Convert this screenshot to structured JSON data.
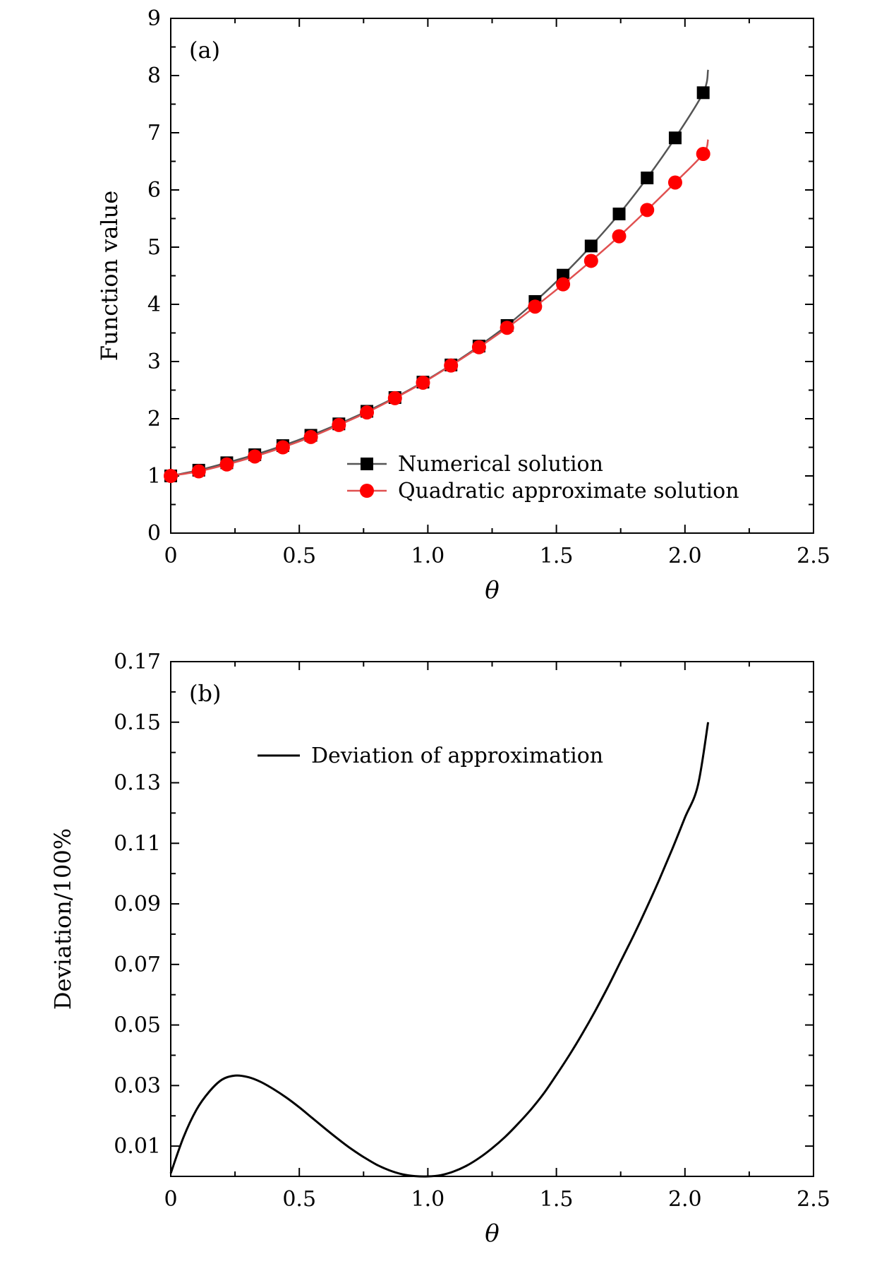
{
  "chart_data": [
    {
      "type": "line",
      "panel_label": "(a)",
      "xlabel": "θ",
      "ylabel": "Function value",
      "xlim": [
        0,
        2.5
      ],
      "ylim": [
        0,
        9
      ],
      "x_ticks": [
        0,
        0.5,
        1.0,
        1.5,
        2.0,
        2.5
      ],
      "x_tick_labels": [
        "0",
        "0.5",
        "1.0",
        "1.5",
        "2.0",
        "2.5"
      ],
      "y_ticks": [
        0,
        1,
        2,
        3,
        4,
        5,
        6,
        7,
        8,
        9
      ],
      "y_tick_labels": [
        "0",
        "1",
        "2",
        "3",
        "4",
        "5",
        "6",
        "7",
        "8",
        "9"
      ],
      "legend_position": "bottom-right",
      "series": [
        {
          "name": "Numerical solution",
          "color": "#555555",
          "marker": "square",
          "marker_color": "#000000",
          "line_end": [
            2.09,
            8.1
          ],
          "x": [
            0,
            0.109,
            0.218,
            0.327,
            0.436,
            0.545,
            0.654,
            0.763,
            0.872,
            0.981,
            1.09,
            1.199,
            1.308,
            1.417,
            1.526,
            1.635,
            1.744,
            1.853,
            1.962,
            2.071
          ],
          "values": [
            1.0,
            1.1,
            1.23,
            1.37,
            1.53,
            1.71,
            1.91,
            2.13,
            2.37,
            2.64,
            2.94,
            3.27,
            3.63,
            4.05,
            4.51,
            5.02,
            5.58,
            6.21,
            6.91,
            7.7
          ]
        },
        {
          "name": "Quadratic approximate solution",
          "color": "#e05050",
          "marker": "circle",
          "marker_color": "#ff0000",
          "line_end": [
            2.09,
            6.88
          ],
          "x": [
            0,
            0.109,
            0.218,
            0.327,
            0.436,
            0.545,
            0.654,
            0.763,
            0.872,
            0.981,
            1.09,
            1.199,
            1.308,
            1.417,
            1.526,
            1.635,
            1.744,
            1.853,
            1.962,
            2.071
          ],
          "values": [
            1.0,
            1.08,
            1.2,
            1.34,
            1.5,
            1.68,
            1.89,
            2.11,
            2.36,
            2.63,
            2.93,
            3.25,
            3.59,
            3.96,
            4.35,
            4.76,
            5.19,
            5.65,
            6.13,
            6.63
          ]
        }
      ]
    },
    {
      "type": "line",
      "panel_label": "(b)",
      "xlabel": "θ",
      "ylabel": "Deviation/100%",
      "xlim": [
        0,
        2.5
      ],
      "ylim": [
        0,
        0.17
      ],
      "x_ticks": [
        0,
        0.5,
        1.0,
        1.5,
        2.0,
        2.5
      ],
      "x_tick_labels": [
        "0",
        "0.5",
        "1.0",
        "1.5",
        "2.0",
        "2.5"
      ],
      "y_ticks": [
        0.01,
        0.03,
        0.05,
        0.07,
        0.09,
        0.11,
        0.13,
        0.15,
        0.17
      ],
      "y_tick_labels": [
        "0.01",
        "0.03",
        "0.05",
        "0.07",
        "0.09",
        "0.11",
        "0.13",
        "0.15",
        "0.17"
      ],
      "legend_position": "top",
      "series": [
        {
          "name": "Deviation of approximation",
          "color": "#000000",
          "x": [
            0,
            0.05,
            0.1,
            0.15,
            0.2,
            0.25,
            0.3,
            0.35,
            0.4,
            0.45,
            0.5,
            0.55,
            0.6,
            0.65,
            0.7,
            0.75,
            0.8,
            0.85,
            0.9,
            0.95,
            1.0,
            1.05,
            1.1,
            1.15,
            1.2,
            1.25,
            1.3,
            1.35,
            1.4,
            1.45,
            1.5,
            1.55,
            1.6,
            1.65,
            1.7,
            1.75,
            1.8,
            1.85,
            1.9,
            1.95,
            2.0,
            2.05,
            2.09
          ],
          "values": [
            0.001,
            0.013,
            0.022,
            0.028,
            0.032,
            0.0333,
            0.0328,
            0.0312,
            0.0288,
            0.026,
            0.0228,
            0.0193,
            0.0158,
            0.0124,
            0.0092,
            0.0064,
            0.0039,
            0.002,
            0.0007,
            0.0001,
            0.0,
            0.0004,
            0.0016,
            0.0035,
            0.0061,
            0.0093,
            0.013,
            0.0173,
            0.022,
            0.0273,
            0.0335,
            0.04,
            0.047,
            0.0545,
            0.0625,
            0.071,
            0.0795,
            0.0885,
            0.098,
            0.108,
            0.1185,
            0.129,
            0.15
          ]
        }
      ]
    }
  ]
}
